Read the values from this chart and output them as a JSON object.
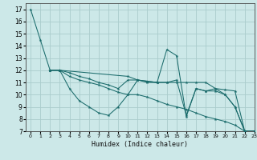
{
  "title": "",
  "xlabel": "Humidex (Indice chaleur)",
  "bg_color": "#cce8e8",
  "grid_color": "#aacccc",
  "line_color": "#1a6b6b",
  "xlim": [
    -0.5,
    23
  ],
  "ylim": [
    7,
    17.5
  ],
  "xticks": [
    0,
    1,
    2,
    3,
    4,
    5,
    6,
    7,
    8,
    9,
    10,
    11,
    12,
    13,
    14,
    15,
    16,
    17,
    18,
    19,
    20,
    21,
    22,
    23
  ],
  "yticks": [
    7,
    8,
    9,
    10,
    11,
    12,
    13,
    14,
    15,
    16,
    17
  ],
  "lines": [
    {
      "x": [
        0,
        1,
        2,
        3,
        4,
        5,
        6,
        7,
        8,
        9,
        10,
        11,
        12,
        13,
        14,
        15,
        16,
        17,
        18,
        19,
        20,
        21,
        22,
        23
      ],
      "y": [
        17,
        14.5,
        12,
        12,
        10.5,
        9.5,
        9,
        8.5,
        8.3,
        9.0,
        10.0,
        11.2,
        11.0,
        11.0,
        13.7,
        13.2,
        8.2,
        10.5,
        10.3,
        10.5,
        10.0,
        9.0,
        7.0,
        7.0
      ]
    },
    {
      "x": [
        2,
        3,
        4,
        5,
        6,
        7,
        8,
        9,
        10,
        11,
        12,
        13,
        14,
        15,
        16,
        17,
        18,
        19,
        20,
        21,
        22,
        23
      ],
      "y": [
        12,
        12,
        11.5,
        11.2,
        11.0,
        10.8,
        10.5,
        10.2,
        10.0,
        10.0,
        9.8,
        9.5,
        9.2,
        9.0,
        8.8,
        8.5,
        8.2,
        8.0,
        7.8,
        7.5,
        7.0,
        7.0
      ]
    },
    {
      "x": [
        2,
        3,
        4,
        5,
        6,
        7,
        8,
        9,
        10,
        11,
        12,
        13,
        14,
        15,
        16,
        17,
        18,
        19,
        20,
        21,
        22,
        23
      ],
      "y": [
        12,
        12,
        11.8,
        11.5,
        11.3,
        11.0,
        10.8,
        10.5,
        11.2,
        11.2,
        11.1,
        11.0,
        11.0,
        11.0,
        11.0,
        11.0,
        11.0,
        10.5,
        10.4,
        10.3,
        7.0,
        7.0
      ]
    },
    {
      "x": [
        2,
        3,
        10,
        11,
        12,
        13,
        14,
        15,
        16,
        17,
        18,
        19,
        20,
        21,
        22,
        23
      ],
      "y": [
        12,
        12,
        11.5,
        11.2,
        11.1,
        11.0,
        11.0,
        11.2,
        8.3,
        10.5,
        10.3,
        10.3,
        10.0,
        9.0,
        7.0,
        7.0
      ]
    }
  ]
}
